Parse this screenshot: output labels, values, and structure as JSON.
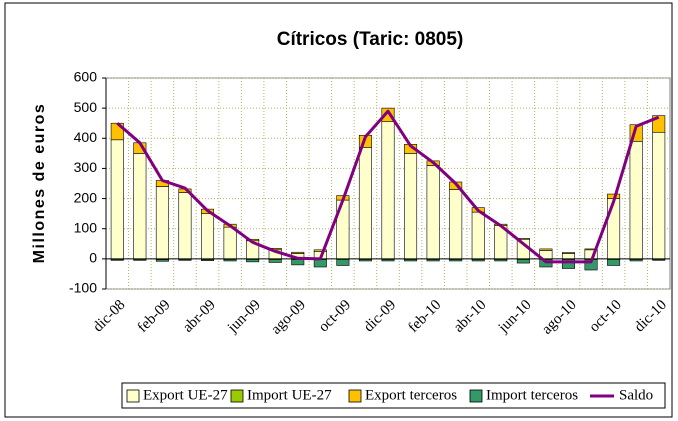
{
  "chart_data": {
    "type": "bar",
    "title": "Cítricos (Taric: 0805)",
    "y_label": "Millones de euros",
    "categories": [
      "dic-08",
      null,
      "feb-09",
      null,
      "abr-09",
      null,
      "jun-09",
      null,
      "ago-09",
      null,
      "oct-09",
      null,
      "dic-09",
      null,
      "feb-10",
      null,
      "abr-10",
      null,
      "jun-10",
      null,
      "ago-10",
      null,
      "oct-10",
      null,
      "dic-10"
    ],
    "series": [
      {
        "name": "Export UE-27",
        "type": "bar",
        "color": "#ffffcc",
        "values": [
          395,
          350,
          240,
          220,
          150,
          105,
          60,
          30,
          18,
          25,
          195,
          370,
          455,
          350,
          310,
          230,
          155,
          110,
          65,
          28,
          18,
          30,
          200,
          390,
          420
        ]
      },
      {
        "name": "Import UE-27",
        "type": "bar",
        "color": "#99cc00",
        "values": [
          -2,
          -2,
          -3,
          -2,
          -2,
          -2,
          -2,
          -2,
          -2,
          -2,
          -2,
          -2,
          -2,
          -2,
          -2,
          -2,
          -2,
          -2,
          -2,
          -2,
          -2,
          -2,
          -2,
          -2,
          -2
        ]
      },
      {
        "name": "Export terceros",
        "type": "bar",
        "color": "#ffc000",
        "values": [
          55,
          35,
          20,
          12,
          15,
          10,
          5,
          5,
          4,
          5,
          15,
          40,
          45,
          30,
          15,
          25,
          15,
          5,
          3,
          5,
          3,
          3,
          15,
          55,
          55
        ]
      },
      {
        "name": "Import terceros",
        "type": "bar",
        "color": "#339966",
        "values": [
          -3,
          -3,
          -5,
          -3,
          -4,
          -5,
          -8,
          -10,
          -18,
          -25,
          -20,
          -5,
          -5,
          -5,
          -5,
          -5,
          -5,
          -5,
          -12,
          -25,
          -30,
          -35,
          -20,
          -5,
          -3
        ]
      },
      {
        "name": "Saldo",
        "type": "line",
        "color": "#800080",
        "values": [
          450,
          385,
          260,
          235,
          160,
          110,
          55,
          25,
          2,
          0,
          195,
          405,
          490,
          375,
          320,
          250,
          160,
          110,
          50,
          -10,
          -10,
          -10,
          190,
          440,
          470
        ]
      }
    ],
    "ylim": [
      -100,
      600
    ],
    "yticks": [
      -100,
      0,
      100,
      200,
      300,
      400,
      500,
      600
    ],
    "grid": true,
    "legend": "bottom"
  }
}
